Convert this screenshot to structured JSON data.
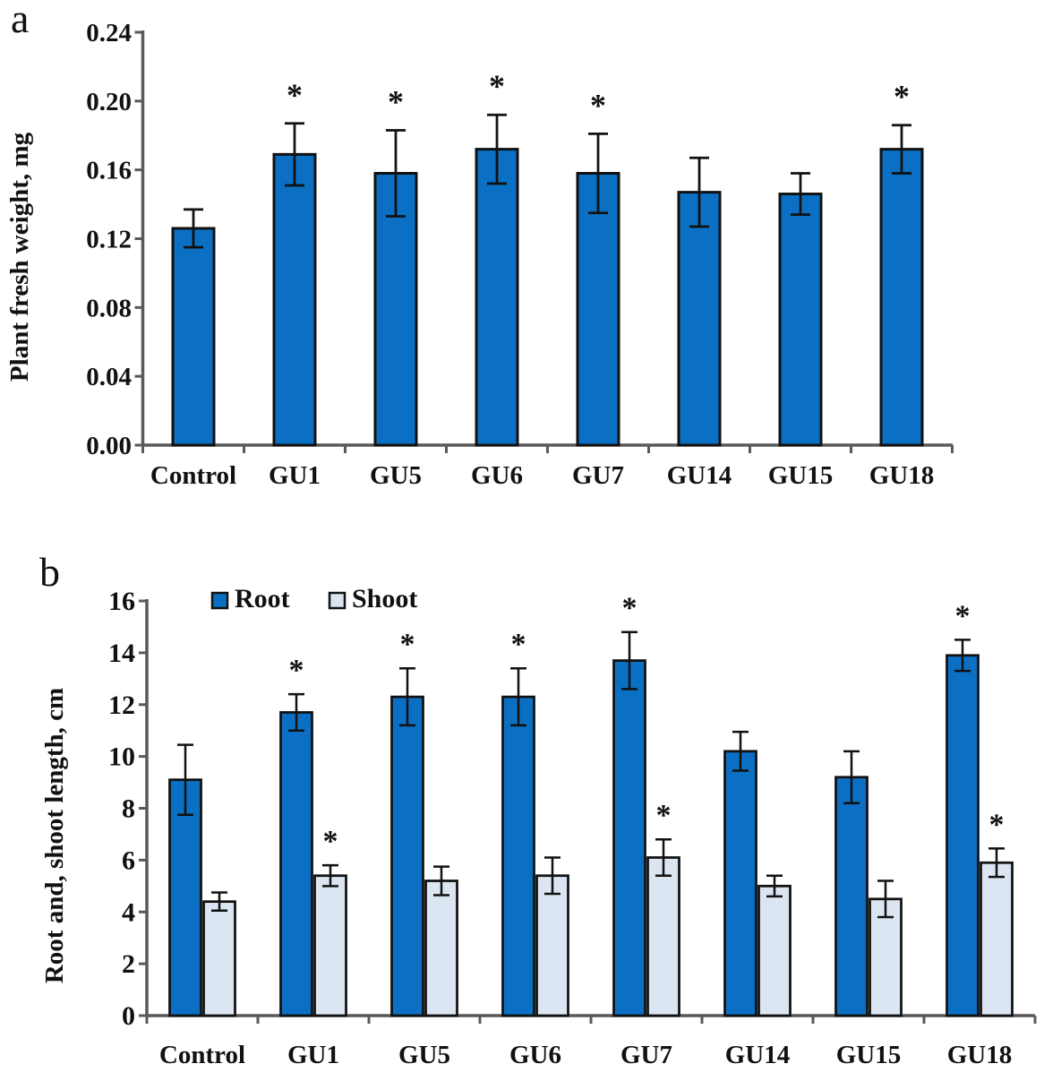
{
  "figure": {
    "background": "#ffffff",
    "significance_symbol": "*",
    "bar_border_color": "#111111",
    "axis_color": "#595959"
  },
  "chart_data": [
    {
      "panel_label": "a",
      "type": "bar",
      "title": "",
      "xlabel": "",
      "ylabel": "Plant fresh weight, mg",
      "categories": [
        "Control",
        "GU1",
        "GU5",
        "GU6",
        "GU7",
        "GU14",
        "GU15",
        "GU18"
      ],
      "ylim": [
        0,
        0.24
      ],
      "ytick_step": 0.04,
      "ytick_decimals": 2,
      "ytick_labels": [
        "0.00",
        "0.04",
        "0.08",
        "0.12",
        "0.16",
        "0.20",
        "0.24"
      ],
      "grid": false,
      "legend": null,
      "series": [
        {
          "name": "Plant fresh weight",
          "color": "#0B70C3",
          "values": [
            0.126,
            0.169,
            0.158,
            0.172,
            0.158,
            0.147,
            0.146,
            0.172
          ],
          "errors": [
            0.011,
            0.018,
            0.025,
            0.02,
            0.023,
            0.02,
            0.012,
            0.014
          ],
          "significance": [
            "",
            "*",
            "*",
            "*",
            "*",
            "",
            "",
            "*"
          ]
        }
      ]
    },
    {
      "panel_label": "b",
      "type": "bar",
      "title": "",
      "xlabel": "",
      "ylabel": "Root and, shoot length, cm",
      "categories": [
        "Control",
        "GU1",
        "GU5",
        "GU6",
        "GU7",
        "GU14",
        "GU15",
        "GU18"
      ],
      "ylim": [
        0,
        16
      ],
      "ytick_step": 2,
      "ytick_decimals": 0,
      "ytick_labels": [
        "0",
        "2",
        "4",
        "6",
        "8",
        "10",
        "12",
        "14",
        "16"
      ],
      "grid": false,
      "legend": {
        "position": "top-inside",
        "entries": [
          "Root",
          "Shoot"
        ]
      },
      "series": [
        {
          "name": "Root",
          "color": "#0B70C3",
          "values": [
            9.1,
            11.7,
            12.3,
            12.3,
            13.7,
            10.2,
            9.2,
            13.9
          ],
          "errors": [
            1.35,
            0.7,
            1.1,
            1.1,
            1.1,
            0.75,
            1.0,
            0.6
          ],
          "significance": [
            "",
            "*",
            "*",
            "*",
            "*",
            "",
            "",
            "*"
          ]
        },
        {
          "name": "Shoot",
          "color": "#DCE6F2",
          "values": [
            4.4,
            5.4,
            5.2,
            5.4,
            6.1,
            5.0,
            4.5,
            5.9
          ],
          "errors": [
            0.35,
            0.4,
            0.55,
            0.7,
            0.7,
            0.4,
            0.7,
            0.55
          ],
          "significance": [
            "",
            "*",
            "",
            "",
            "*",
            "",
            "",
            "*"
          ]
        }
      ]
    }
  ]
}
